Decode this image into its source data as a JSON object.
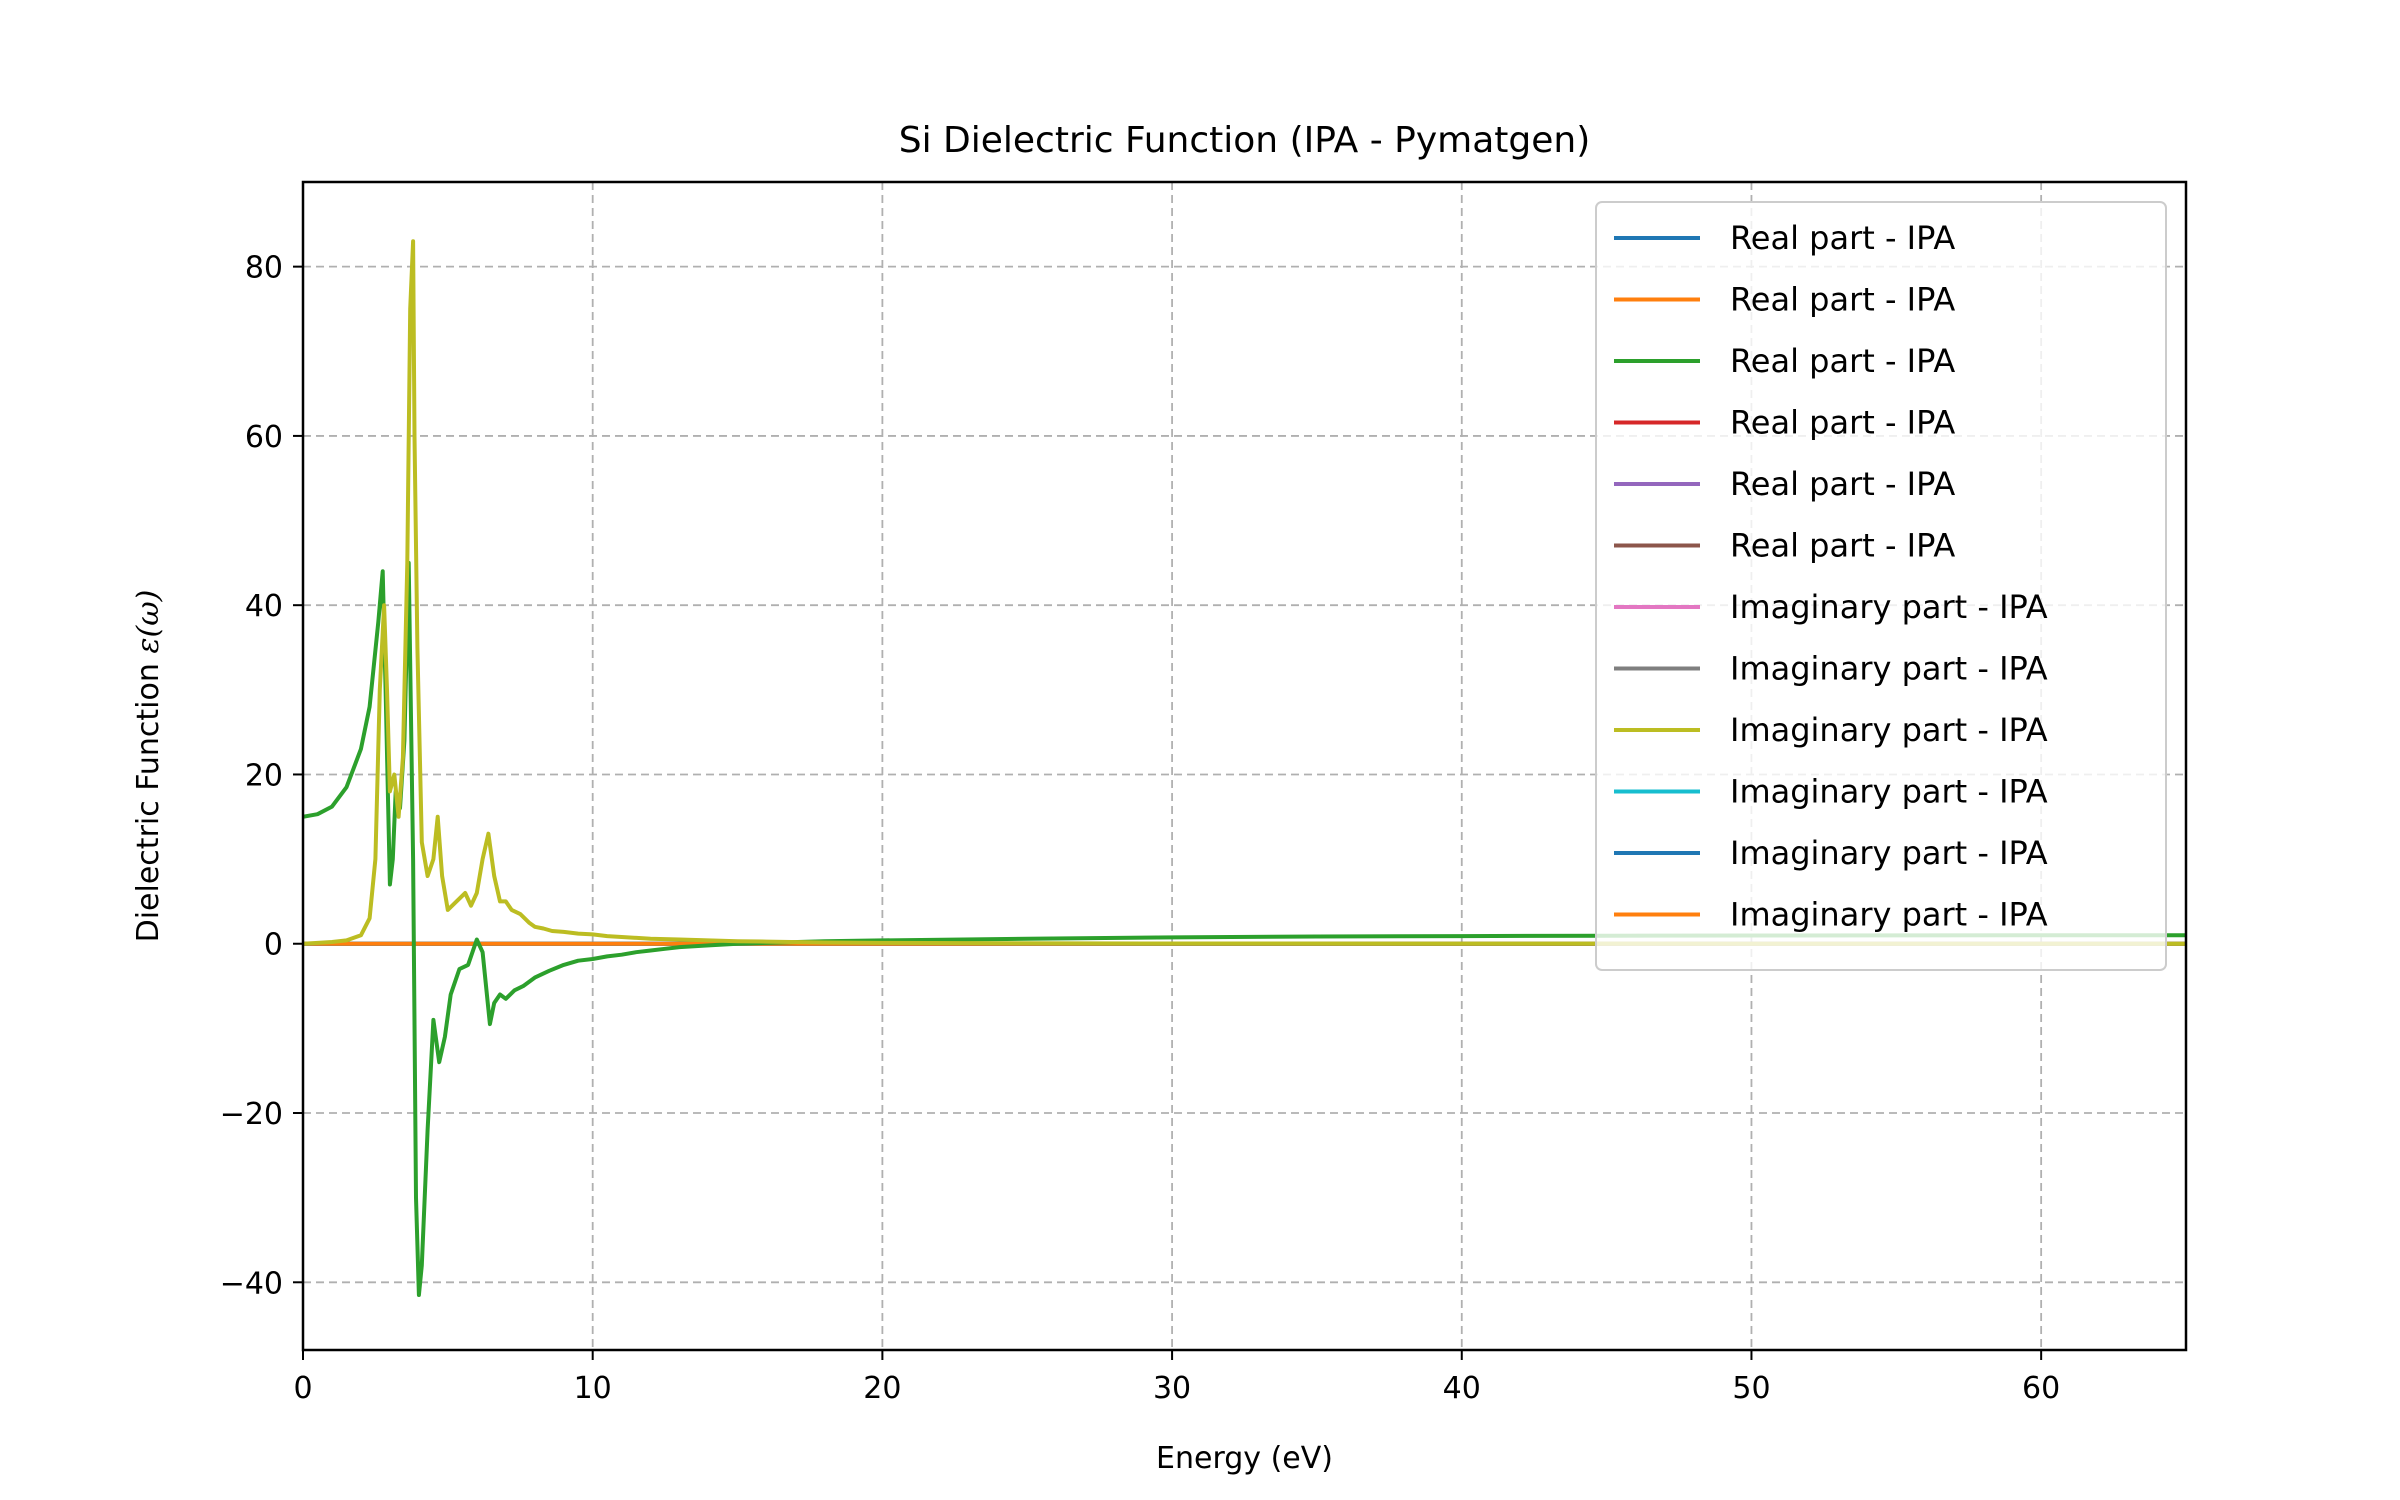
{
  "chart_data": {
    "type": "line",
    "title": "Si Dielectric Function (IPA - Pymatgen)",
    "xlabel": "Energy (eV)",
    "ylabel_prefix": "Dielectric Function ",
    "ylabel_symbol": "ε(ω)",
    "xlim": [
      0,
      65
    ],
    "ylim": [
      -48,
      90
    ],
    "xticks": [
      0,
      10,
      20,
      30,
      40,
      50,
      60
    ],
    "yticks": [
      -40,
      -20,
      0,
      20,
      40,
      60,
      80
    ],
    "xtick_labels": [
      "0",
      "10",
      "20",
      "30",
      "40",
      "50",
      "60"
    ],
    "ytick_labels": [
      "−40",
      "−20",
      "0",
      "20",
      "40",
      "60",
      "80"
    ],
    "grid": true,
    "legend_position": "top-right",
    "series": [
      {
        "name": "Real part - IPA",
        "color": "#1f77b4",
        "x": [
          0,
          65
        ],
        "y": [
          0,
          0
        ]
      },
      {
        "name": "Real part - IPA",
        "color": "#ff7f0e",
        "x": [
          0,
          65
        ],
        "y": [
          0,
          0
        ]
      },
      {
        "name": "Real part - IPA",
        "color": "#2ca02c",
        "x": [
          0,
          0.5,
          1.0,
          1.5,
          2.0,
          2.3,
          2.6,
          2.75,
          2.85,
          3.0,
          3.1,
          3.2,
          3.35,
          3.5,
          3.65,
          3.8,
          3.9,
          4.0,
          4.1,
          4.3,
          4.5,
          4.7,
          4.9,
          5.1,
          5.4,
          5.7,
          6.0,
          6.2,
          6.45,
          6.6,
          6.8,
          7.0,
          7.3,
          7.6,
          8.0,
          8.5,
          9.0,
          9.5,
          10.0,
          10.5,
          11.0,
          11.5,
          12.0,
          12.5,
          13.0,
          14.0,
          15.0,
          16.0,
          18.0,
          20.0,
          25.0,
          30.0,
          35.0,
          40.0,
          45.0,
          50.0,
          55.0,
          60.0,
          65.0
        ],
        "y": [
          15.0,
          15.3,
          16.2,
          18.5,
          23.0,
          28.0,
          38.0,
          44.0,
          30.0,
          7.0,
          10.0,
          18.0,
          16.0,
          24.0,
          45.0,
          10.0,
          -30.0,
          -41.5,
          -38.0,
          -22.0,
          -9.0,
          -14.0,
          -11.0,
          -6.0,
          -3.0,
          -2.5,
          0.5,
          -1.0,
          -9.5,
          -7.0,
          -6.0,
          -6.5,
          -5.5,
          -5.0,
          -4.0,
          -3.2,
          -2.5,
          -2.0,
          -1.8,
          -1.5,
          -1.3,
          -1.0,
          -0.8,
          -0.6,
          -0.4,
          -0.2,
          0.0,
          0.1,
          0.3,
          0.4,
          0.6,
          0.75,
          0.85,
          0.9,
          0.95,
          0.97,
          0.99,
          1.0,
          1.0
        ]
      },
      {
        "name": "Real part - IPA",
        "color": "#d62728",
        "x": [
          0,
          65
        ],
        "y": [
          0,
          0
        ]
      },
      {
        "name": "Real part - IPA",
        "color": "#9467bd",
        "x": [
          0,
          65
        ],
        "y": [
          0,
          0
        ]
      },
      {
        "name": "Real part - IPA",
        "color": "#8c564b",
        "x": [
          0,
          65
        ],
        "y": [
          0,
          0
        ]
      },
      {
        "name": "Imaginary part - IPA",
        "color": "#e377c2",
        "x": [
          0,
          65
        ],
        "y": [
          0,
          0
        ]
      },
      {
        "name": "Imaginary part - IPA",
        "color": "#7f7f7f",
        "x": [
          0,
          65
        ],
        "y": [
          0,
          0
        ]
      },
      {
        "name": "Imaginary part - IPA",
        "color": "#bcbd22",
        "x": [
          0,
          1.0,
          1.5,
          2.0,
          2.3,
          2.5,
          2.65,
          2.8,
          2.9,
          3.0,
          3.15,
          3.3,
          3.45,
          3.6,
          3.7,
          3.8,
          3.85,
          3.95,
          4.1,
          4.3,
          4.5,
          4.65,
          4.8,
          5.0,
          5.3,
          5.6,
          5.8,
          6.0,
          6.2,
          6.4,
          6.6,
          6.8,
          7.0,
          7.2,
          7.5,
          7.8,
          8.0,
          8.3,
          8.6,
          9.0,
          9.5,
          10.0,
          10.5,
          11.0,
          12.0,
          13.0,
          14.0,
          15.0,
          16.0,
          18.0,
          20.0,
          25.0,
          30.0,
          40.0,
          50.0,
          60.0,
          65.0
        ],
        "y": [
          0,
          0.2,
          0.4,
          1.0,
          3.0,
          10.0,
          30.0,
          40.0,
          30.0,
          18.0,
          20.0,
          15.0,
          22.0,
          45.0,
          75.0,
          83.0,
          60.0,
          35.0,
          12.0,
          8.0,
          10.0,
          15.0,
          8.0,
          4.0,
          5.0,
          6.0,
          4.5,
          6.0,
          10.0,
          13.0,
          8.0,
          5.0,
          5.0,
          4.0,
          3.5,
          2.5,
          2.0,
          1.8,
          1.5,
          1.4,
          1.2,
          1.1,
          0.9,
          0.8,
          0.6,
          0.5,
          0.4,
          0.3,
          0.25,
          0.15,
          0.1,
          0.05,
          0.03,
          0.02,
          0.01,
          0.01,
          0.01
        ]
      },
      {
        "name": "Imaginary part - IPA",
        "color": "#17becf",
        "x": [
          0,
          65
        ],
        "y": [
          0,
          0
        ]
      },
      {
        "name": "Imaginary part - IPA",
        "color": "#1f77b4",
        "x": [
          0,
          65
        ],
        "y": [
          0,
          0
        ]
      },
      {
        "name": "Imaginary part - IPA",
        "color": "#ff7f0e",
        "x": [
          0,
          65
        ],
        "y": [
          0,
          0
        ]
      }
    ]
  }
}
